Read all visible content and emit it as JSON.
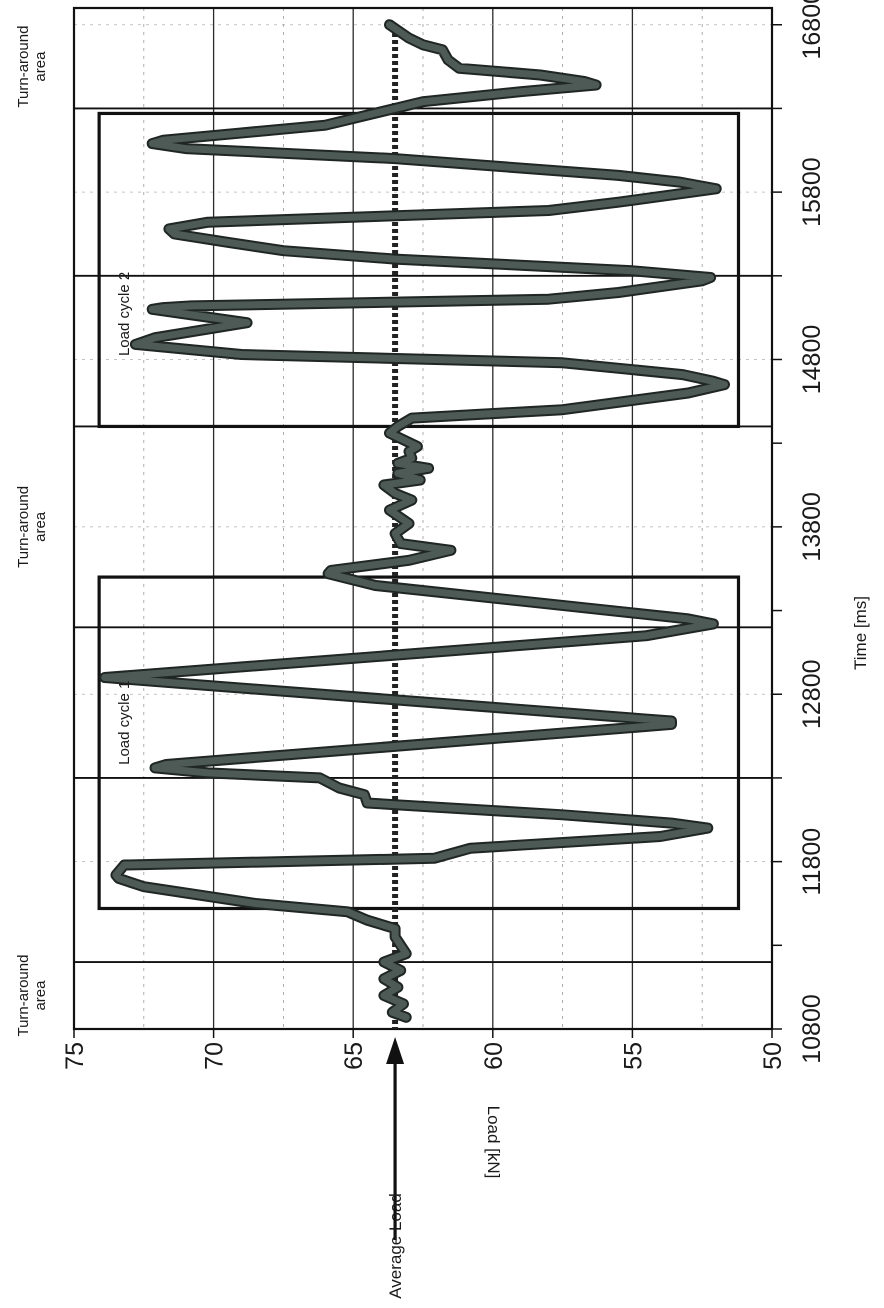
{
  "chart_data": {
    "type": "line",
    "xlabel": "Time [ms]",
    "ylabel": "Load [kN]",
    "xlim": [
      10800,
      16900
    ],
    "ylim": [
      50,
      75
    ],
    "x_ticks": [
      10800,
      11800,
      12800,
      13800,
      14800,
      15800,
      16800
    ],
    "y_ticks": [
      50,
      55,
      60,
      65,
      70,
      75
    ],
    "x_minor_ticks": [
      11300,
      12300,
      13300,
      14300,
      15300,
      16300
    ],
    "y_minor_ticks": [
      52.5,
      57.5,
      62.5,
      67.5,
      72.5
    ],
    "grid": true,
    "series": [
      {
        "color": "#4d5a56",
        "points": [
          [
            10870,
            63.1
          ],
          [
            10900,
            63.6
          ],
          [
            10950,
            63.2
          ],
          [
            11000,
            63.9
          ],
          [
            11050,
            63.4
          ],
          [
            11100,
            63.9
          ],
          [
            11150,
            63.3
          ],
          [
            11200,
            63.9
          ],
          [
            11250,
            63.1
          ],
          [
            11350,
            63.5
          ],
          [
            11400,
            63.5
          ],
          [
            11450,
            64.5
          ],
          [
            11500,
            65.2
          ],
          [
            11550,
            68.5
          ],
          [
            11650,
            72.5
          ],
          [
            11700,
            73.4
          ],
          [
            11720,
            73.5
          ],
          [
            11780,
            73.2
          ],
          [
            11820,
            62.1
          ],
          [
            11880,
            60.8
          ],
          [
            11950,
            54.0
          ],
          [
            12000,
            52.3
          ],
          [
            12030,
            53.6
          ],
          [
            12080,
            57.5
          ],
          [
            12150,
            64.5
          ],
          [
            12200,
            64.6
          ],
          [
            12240,
            65.5
          ],
          [
            12300,
            66.2
          ],
          [
            12330,
            70.2
          ],
          [
            12360,
            72.1
          ],
          [
            12380,
            71.7
          ],
          [
            12620,
            53.6
          ],
          [
            12640,
            53.6
          ],
          [
            12870,
            71.6
          ],
          [
            12900,
            73.9
          ],
          [
            13150,
            54.5
          ],
          [
            13220,
            52.1
          ],
          [
            13250,
            53.0
          ],
          [
            13450,
            64.2
          ],
          [
            13520,
            65.9
          ],
          [
            13540,
            65.8
          ],
          [
            13600,
            63.0
          ],
          [
            13660,
            61.5
          ],
          [
            13700,
            63.3
          ],
          [
            13760,
            63.5
          ],
          [
            13820,
            63.0
          ],
          [
            13900,
            63.7
          ],
          [
            13960,
            62.9
          ],
          [
            14000,
            63.5
          ],
          [
            14050,
            63.9
          ],
          [
            14080,
            62.6
          ],
          [
            14120,
            63.4
          ],
          [
            14150,
            62.3
          ],
          [
            14180,
            63.4
          ],
          [
            14210,
            62.9
          ],
          [
            14250,
            63.0
          ],
          [
            14280,
            62.7
          ],
          [
            14360,
            63.7
          ],
          [
            14400,
            63.4
          ],
          [
            14450,
            62.9
          ],
          [
            14500,
            57.5
          ],
          [
            14600,
            53.0
          ],
          [
            14650,
            51.7
          ],
          [
            14670,
            52.1
          ],
          [
            14710,
            53.2
          ],
          [
            14780,
            57.5
          ],
          [
            14830,
            69.0
          ],
          [
            14890,
            72.8
          ],
          [
            14930,
            72.1
          ],
          [
            15020,
            68.8
          ],
          [
            15060,
            70.5
          ],
          [
            15100,
            72.2
          ],
          [
            15110,
            71.8
          ],
          [
            15120,
            70.8
          ],
          [
            15160,
            58.0
          ],
          [
            15200,
            55.5
          ],
          [
            15270,
            52.5
          ],
          [
            15290,
            52.2
          ],
          [
            15330,
            55.0
          ],
          [
            15370,
            59.8
          ],
          [
            15400,
            63.5
          ],
          [
            15450,
            67.5
          ],
          [
            15500,
            69.5
          ],
          [
            15550,
            71.4
          ],
          [
            15580,
            71.6
          ],
          [
            15620,
            70.2
          ],
          [
            15690,
            58.0
          ],
          [
            15740,
            55.5
          ],
          [
            15820,
            52.0
          ],
          [
            15860,
            53.3
          ],
          [
            15900,
            55.5
          ],
          [
            16000,
            63.5
          ],
          [
            16060,
            71.0
          ],
          [
            16090,
            72.2
          ],
          [
            16110,
            71.8
          ],
          [
            16200,
            66.0
          ],
          [
            16340,
            62.5
          ],
          [
            16400,
            59.0
          ],
          [
            16440,
            56.3
          ],
          [
            16460,
            56.7
          ],
          [
            16500,
            58.3
          ],
          [
            16540,
            61.2
          ],
          [
            16590,
            61.6
          ],
          [
            16650,
            61.8
          ],
          [
            16680,
            62.5
          ],
          [
            16720,
            63.0
          ],
          [
            16800,
            63.7
          ]
        ]
      }
    ],
    "reference_line": {
      "label": "Average Load",
      "y": 63.5
    },
    "boxes": [
      {
        "label": "Load cycle 1",
        "x_start": 11520,
        "x_end": 13500,
        "y_range": [
          51.2,
          74.1
        ]
      },
      {
        "label": "Load cycle 2",
        "x_start": 14400,
        "x_end": 16270,
        "y_range": [
          51.2,
          74.1
        ]
      }
    ],
    "vertical_lines": [
      11200,
      12300,
      13200,
      14400,
      15300,
      16300
    ],
    "annotations": [
      {
        "text": [
          "Turn-around",
          "area"
        ],
        "x": 11000
      },
      {
        "text": [
          "Turn-around",
          "area"
        ],
        "x": 13800
      },
      {
        "text": [
          "Turn-around",
          "area"
        ],
        "x": 16550
      }
    ]
  }
}
